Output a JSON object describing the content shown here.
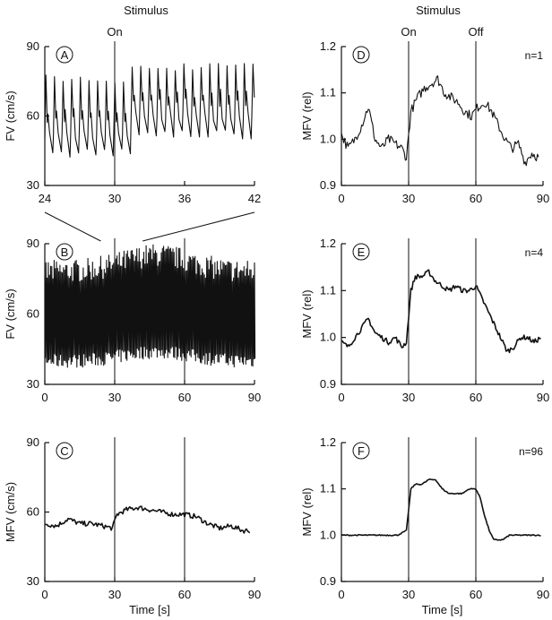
{
  "header": {
    "left": "Stimulus",
    "right": "Stimulus"
  },
  "chart_data": [
    {
      "panel": "A",
      "type": "line",
      "ylabel": "FV (cm/s)",
      "xlabel": "",
      "xlim": [
        24,
        42
      ],
      "ylim": [
        30,
        90
      ],
      "xticks": [
        "24",
        "30",
        "36",
        "42"
      ],
      "yticks": [
        "30",
        "60",
        "90"
      ],
      "markers": [
        {
          "x": 30,
          "label": "On"
        }
      ],
      "annotation": "",
      "series": [
        {
          "kind": "pulsatile",
          "beats_per_s": 1.35,
          "systolic": [
            76,
            81
          ],
          "diastolic": [
            44,
            52
          ],
          "rise_at": 31
        }
      ]
    },
    {
      "panel": "B",
      "type": "line",
      "ylabel": "FV (cm/s)",
      "xlabel": "",
      "xlim": [
        0,
        90
      ],
      "ylim": [
        30,
        90
      ],
      "xticks": [
        "0",
        "30",
        "60",
        "90"
      ],
      "yticks": [
        "30",
        "60",
        "90"
      ],
      "markers": [
        {
          "x": 30,
          "label": ""
        },
        {
          "x": 60,
          "label": ""
        }
      ],
      "annotation": "",
      "series": [
        {
          "kind": "dense-pulsatile",
          "upper": [
            78,
            85
          ],
          "lower": [
            40,
            44
          ]
        }
      ]
    },
    {
      "panel": "C",
      "type": "line",
      "ylabel": "MFV (cm/s)",
      "xlabel": "Time [s]",
      "xlim": [
        0,
        90
      ],
      "ylim": [
        30,
        90
      ],
      "xticks": [
        "0",
        "30",
        "60",
        "90"
      ],
      "yticks": [
        "30",
        "60",
        "90"
      ],
      "markers": [
        {
          "x": 30,
          "label": ""
        },
        {
          "x": 60,
          "label": ""
        }
      ],
      "annotation": "",
      "series": [
        {
          "x": [
            0,
            5,
            10,
            15,
            20,
            25,
            29,
            31,
            35,
            40,
            45,
            50,
            55,
            60,
            65,
            70,
            75,
            80,
            85,
            88
          ],
          "y": [
            55,
            54,
            57,
            55,
            55,
            54,
            53,
            59,
            61,
            62,
            61,
            60,
            59,
            59,
            58,
            55,
            53,
            54,
            52,
            52
          ]
        }
      ]
    },
    {
      "panel": "D",
      "type": "line",
      "ylabel": "MFV (rel)",
      "xlabel": "",
      "xlim": [
        0,
        90
      ],
      "ylim": [
        0.9,
        1.2
      ],
      "xticks": [
        "0",
        "30",
        "60",
        "90"
      ],
      "yticks": [
        "0.9",
        "1.0",
        "1.1",
        "1.2"
      ],
      "markers": [
        {
          "x": 30,
          "label": "On"
        },
        {
          "x": 60,
          "label": "Off"
        }
      ],
      "annotation": "n=1",
      "series": [
        {
          "x": [
            0,
            3,
            6,
            9,
            12,
            15,
            18,
            21,
            24,
            27,
            29,
            31,
            34,
            37,
            40,
            43,
            46,
            49,
            52,
            55,
            58,
            61,
            64,
            67,
            70,
            73,
            76,
            79,
            82,
            85,
            88
          ],
          "y": [
            1.01,
            0.98,
            1.0,
            1.03,
            1.07,
            1.0,
            0.98,
            1.0,
            0.99,
            0.98,
            0.96,
            1.06,
            1.09,
            1.11,
            1.12,
            1.13,
            1.1,
            1.09,
            1.08,
            1.06,
            1.05,
            1.07,
            1.08,
            1.06,
            1.03,
            1.0,
            0.98,
            0.99,
            0.95,
            0.97,
            0.96
          ]
        }
      ]
    },
    {
      "panel": "E",
      "type": "line",
      "ylabel": "MFV (rel)",
      "xlabel": "",
      "xlim": [
        0,
        90
      ],
      "ylim": [
        0.9,
        1.2
      ],
      "xticks": [
        "0",
        "30",
        "60",
        "90"
      ],
      "yticks": [
        "0.9",
        "1.0",
        "1.1",
        "1.2"
      ],
      "markers": [
        {
          "x": 30,
          "label": ""
        },
        {
          "x": 60,
          "label": ""
        }
      ],
      "annotation": "n=4",
      "series": [
        {
          "x": [
            0,
            3,
            6,
            9,
            12,
            15,
            18,
            21,
            24,
            27,
            29,
            31,
            33,
            36,
            39,
            42,
            45,
            48,
            51,
            54,
            57,
            60,
            62,
            65,
            68,
            71,
            74,
            77,
            80,
            83,
            86,
            89
          ],
          "y": [
            0.99,
            0.98,
            1.0,
            1.02,
            1.04,
            1.01,
            1.0,
            0.99,
            1.0,
            0.98,
            0.99,
            1.1,
            1.13,
            1.13,
            1.14,
            1.12,
            1.11,
            1.1,
            1.11,
            1.1,
            1.1,
            1.11,
            1.09,
            1.06,
            1.03,
            1.0,
            0.97,
            0.98,
            1.0,
            1.0,
            0.99,
            1.0
          ]
        }
      ]
    },
    {
      "panel": "F",
      "type": "line",
      "ylabel": "MFV (rel)",
      "xlabel": "Time [s]",
      "xlim": [
        0,
        90
      ],
      "ylim": [
        0.9,
        1.2
      ],
      "xticks": [
        "0",
        "30",
        "60",
        "90"
      ],
      "yticks": [
        "0.9",
        "1.0",
        "1.1",
        "1.2"
      ],
      "markers": [
        {
          "x": 30,
          "label": ""
        },
        {
          "x": 60,
          "label": ""
        }
      ],
      "annotation": "n=96",
      "series": [
        {
          "x": [
            0,
            5,
            10,
            15,
            20,
            25,
            29,
            31,
            33,
            36,
            39,
            42,
            45,
            48,
            51,
            54,
            57,
            60,
            62,
            64,
            66,
            68,
            72,
            75,
            80,
            85,
            89
          ],
          "y": [
            1.0,
            1.0,
            1.0,
            1.0,
            1.0,
            1.0,
            1.01,
            1.1,
            1.11,
            1.11,
            1.12,
            1.12,
            1.1,
            1.09,
            1.09,
            1.09,
            1.1,
            1.1,
            1.08,
            1.04,
            1.01,
            0.99,
            0.99,
            1.0,
            1.0,
            1.0,
            1.0
          ]
        }
      ]
    }
  ]
}
